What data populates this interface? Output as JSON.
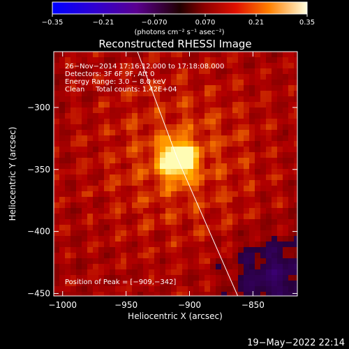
{
  "chart_data": {
    "type": "heatmap",
    "title": "Reconstructed RHESSI Image",
    "colorbar": {
      "ticks": [
        "-0.35",
        "-0.21",
        "-0.070",
        "0.070",
        "0.21",
        "0.35"
      ],
      "range": [
        -0.35,
        0.35
      ],
      "unit_label": "(photons cm⁻² s⁻¹ asec⁻²)"
    },
    "xlabel": "Heliocentric X (arcsec)",
    "ylabel": "Heliocentric Y (arcsec)",
    "xlim": [
      -1007,
      -815
    ],
    "ylim": [
      -452,
      -255
    ],
    "xticks": [
      {
        "v": -1000,
        "label": "−1000"
      },
      {
        "v": -950,
        "label": "−950"
      },
      {
        "v": -900,
        "label": "−900"
      },
      {
        "v": -850,
        "label": "−850"
      }
    ],
    "yticks": [
      {
        "v": -300,
        "label": "−300"
      },
      {
        "v": -350,
        "label": "−350"
      },
      {
        "v": -400,
        "label": "−400"
      },
      {
        "v": -450,
        "label": "−450"
      }
    ],
    "annotations": [
      "26−Nov−2014 17:16:12.000 to 17:18:08.000",
      "Detectors: 3F 6F 9F, Att 0",
      "Energy Range: 3.0 − 8.0 keV",
      "Clean     Total counts: 1.42E+04"
    ],
    "peak_label": "Position of Peak = [−909,−342]",
    "peak": [
      -909,
      -342
    ],
    "limb_points": [
      [
        -941,
        -255
      ],
      [
        -910,
        -340
      ],
      [
        -862,
        -452
      ]
    ],
    "footer": "19−May−2022 22:14"
  }
}
